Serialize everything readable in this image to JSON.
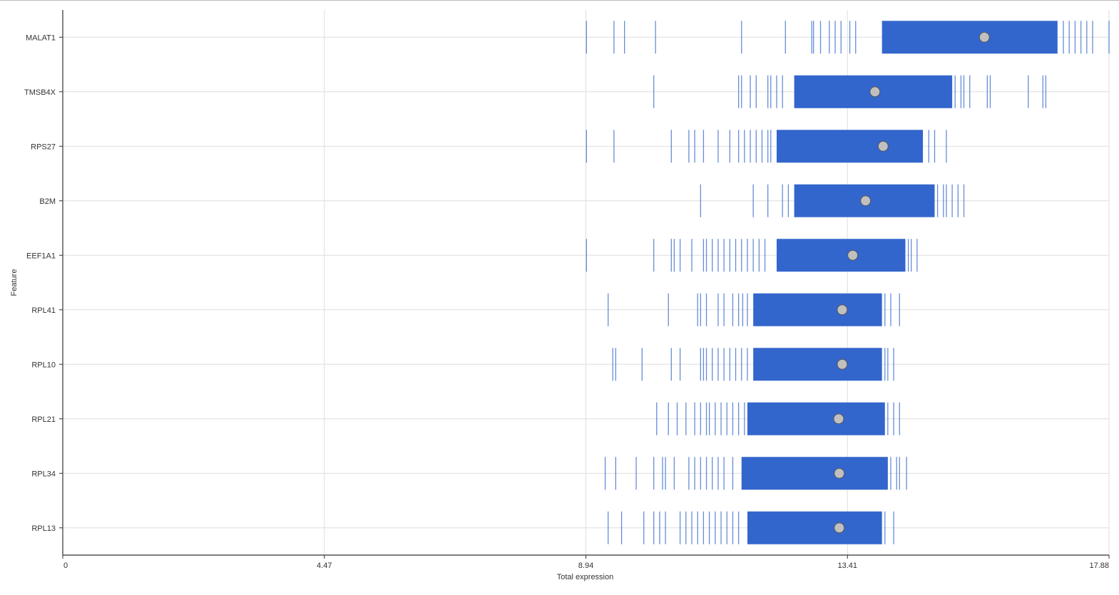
{
  "chart_data": {
    "type": "strip",
    "xlabel": "Total expression",
    "ylabel": "Feature",
    "xlim": [
      0,
      17.88
    ],
    "x_ticks": [
      0,
      4.47,
      8.94,
      13.41,
      17.88
    ],
    "x_tick_labels": [
      "0",
      "4.47",
      "8.94",
      "13.41",
      "17.88"
    ],
    "grid": true,
    "colors": {
      "strip": "#3366cc",
      "mean_marker": "#c0c0c0",
      "grid": "#dedede",
      "axis": "#333333"
    },
    "features": [
      {
        "name": "MALAT1",
        "mean": 15.75,
        "core": [
          14.0,
          17.0
        ],
        "min": 8.95,
        "max": 17.88,
        "outliers": [
          8.95,
          9.42,
          9.6,
          10.13,
          11.6,
          12.35,
          12.8,
          12.83,
          12.95,
          13.1,
          13.2,
          13.3,
          13.45,
          13.55,
          17.1,
          17.2,
          17.3,
          17.4,
          17.5,
          17.6,
          17.88
        ]
      },
      {
        "name": "TMSB4X",
        "mean": 13.88,
        "core": [
          12.5,
          15.2
        ],
        "min": 10.1,
        "max": 16.8,
        "outliers": [
          10.1,
          11.55,
          11.6,
          11.75,
          11.85,
          12.05,
          12.1,
          12.2,
          12.3,
          15.25,
          15.35,
          15.4,
          15.5,
          15.8,
          15.85,
          16.5,
          16.75,
          16.8
        ]
      },
      {
        "name": "RPS27",
        "mean": 14.02,
        "core": [
          12.2,
          14.7
        ],
        "min": 8.95,
        "max": 15.1,
        "outliers": [
          8.95,
          9.42,
          10.4,
          10.7,
          10.8,
          10.95,
          11.2,
          11.4,
          11.55,
          11.65,
          11.75,
          11.85,
          11.95,
          12.05,
          12.1,
          14.8,
          14.9,
          15.1
        ]
      },
      {
        "name": "B2M",
        "mean": 13.72,
        "core": [
          12.5,
          14.9
        ],
        "min": 10.9,
        "max": 15.4,
        "outliers": [
          10.9,
          11.8,
          12.05,
          12.3,
          12.4,
          14.95,
          15.05,
          15.1,
          15.2,
          15.3,
          15.4
        ]
      },
      {
        "name": "EEF1A1",
        "mean": 13.5,
        "core": [
          12.2,
          14.4
        ],
        "min": 8.95,
        "max": 14.6,
        "outliers": [
          8.95,
          10.1,
          10.4,
          10.45,
          10.55,
          10.75,
          10.95,
          11.0,
          11.1,
          11.2,
          11.3,
          11.4,
          11.5,
          11.6,
          11.7,
          11.8,
          11.9,
          12.0,
          14.45,
          14.5,
          14.6
        ]
      },
      {
        "name": "RPL41",
        "mean": 13.32,
        "core": [
          11.8,
          14.0
        ],
        "min": 9.32,
        "max": 14.3,
        "outliers": [
          9.32,
          10.35,
          10.85,
          10.9,
          11.0,
          11.2,
          11.3,
          11.45,
          11.55,
          11.62,
          11.7,
          14.05,
          14.15,
          14.3
        ]
      },
      {
        "name": "RPL10",
        "mean": 13.32,
        "core": [
          11.8,
          14.0
        ],
        "min": 9.4,
        "max": 14.2,
        "outliers": [
          9.4,
          9.45,
          9.9,
          10.4,
          10.55,
          10.9,
          10.95,
          11.0,
          11.1,
          11.2,
          11.3,
          11.4,
          11.5,
          11.6,
          11.7,
          14.05,
          14.1,
          14.2
        ]
      },
      {
        "name": "RPL21",
        "mean": 13.26,
        "core": [
          11.7,
          14.05
        ],
        "min": 10.15,
        "max": 14.3,
        "outliers": [
          10.15,
          10.35,
          10.5,
          10.65,
          10.8,
          10.9,
          11.0,
          11.05,
          11.15,
          11.25,
          11.35,
          11.45,
          11.55,
          11.65,
          14.1,
          14.2,
          14.3
        ]
      },
      {
        "name": "RPL34",
        "mean": 13.27,
        "core": [
          11.6,
          14.1
        ],
        "min": 9.27,
        "max": 14.42,
        "outliers": [
          9.27,
          9.45,
          9.8,
          10.1,
          10.25,
          10.3,
          10.45,
          10.7,
          10.8,
          10.9,
          11.0,
          11.1,
          11.2,
          11.3,
          11.45,
          14.15,
          14.25,
          14.3,
          14.42
        ]
      },
      {
        "name": "RPL13",
        "mean": 13.27,
        "core": [
          11.7,
          14.0
        ],
        "min": 9.32,
        "max": 14.2,
        "outliers": [
          9.32,
          9.55,
          9.93,
          10.1,
          10.2,
          10.3,
          10.55,
          10.65,
          10.75,
          10.85,
          10.95,
          11.05,
          11.15,
          11.25,
          11.35,
          11.45,
          11.55,
          14.05,
          14.2
        ]
      }
    ]
  }
}
